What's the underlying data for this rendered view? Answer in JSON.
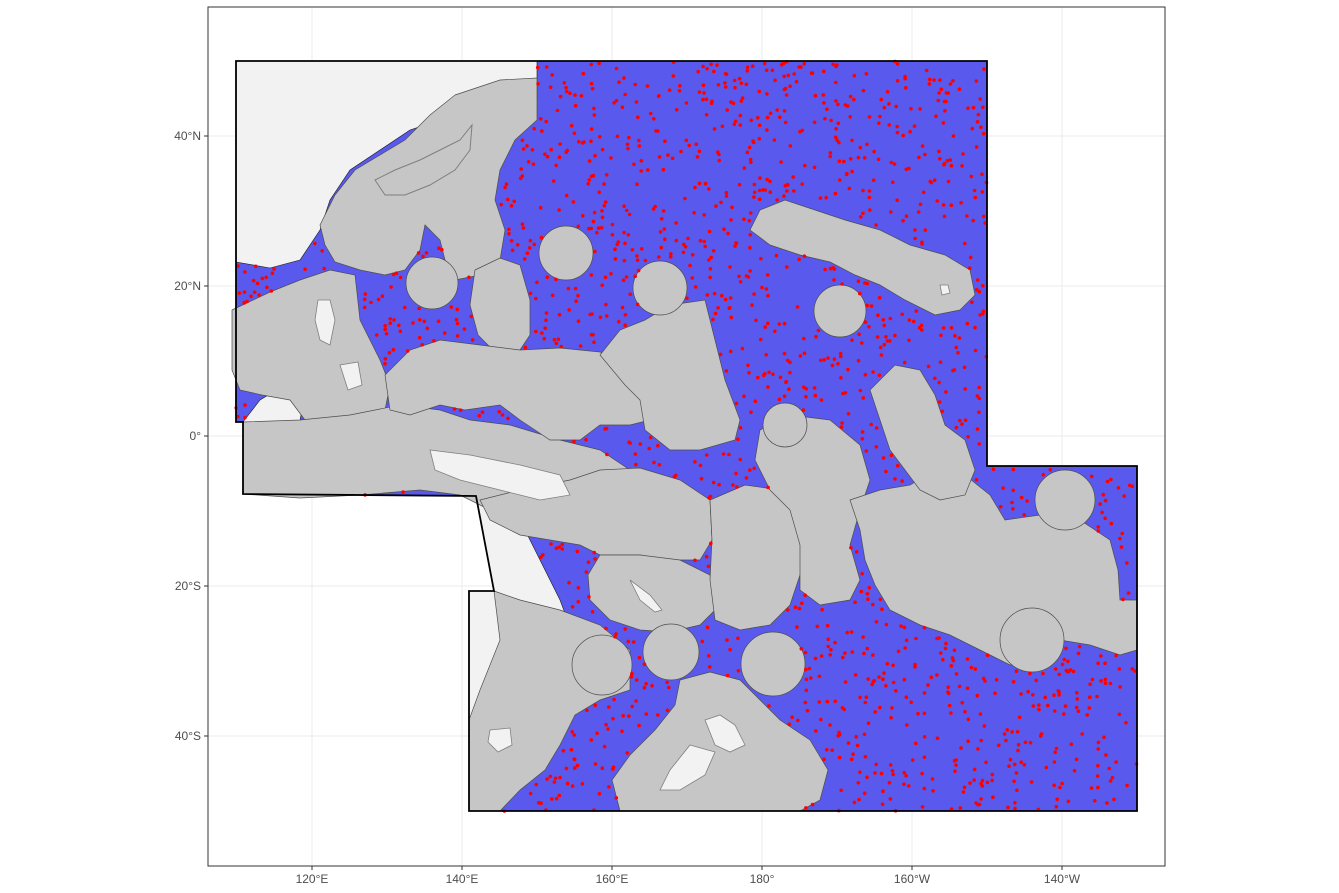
{
  "map": {
    "x_ticks": [
      {
        "lon": 120,
        "label": "120°E"
      },
      {
        "lon": 140,
        "label": "140°E"
      },
      {
        "lon": 160,
        "label": "160°E"
      },
      {
        "lon": 180,
        "label": "180°"
      },
      {
        "lon": 200,
        "label": "160°W"
      },
      {
        "lon": 220,
        "label": "140°W"
      }
    ],
    "y_ticks": [
      {
        "lat": 40,
        "label": "40°N"
      },
      {
        "lat": 20,
        "label": "20°N"
      },
      {
        "lat": 0,
        "label": "0°"
      },
      {
        "lat": -20,
        "label": "20°S"
      },
      {
        "lat": -40,
        "label": "40°S"
      }
    ],
    "x_range_lon": [
      106,
      234
    ],
    "y_range_lat": [
      -57,
      57
    ],
    "grid": true,
    "colors": {
      "panel_background": "#ffffff",
      "panel_border": "#333333",
      "grid": "#ebebeb",
      "study_area_fill": "#5959ed",
      "study_area_border": "#000000",
      "land": "#f2f2f2",
      "eez": "#c6c6c6",
      "eez_border": "#4d4d4d",
      "points": "#ff0000"
    },
    "layers": [
      "study-area-polygon",
      "land",
      "eez-zones",
      "random-sample-points"
    ],
    "sample_points": {
      "approx_count": 1300,
      "color": "#ff0000"
    }
  }
}
